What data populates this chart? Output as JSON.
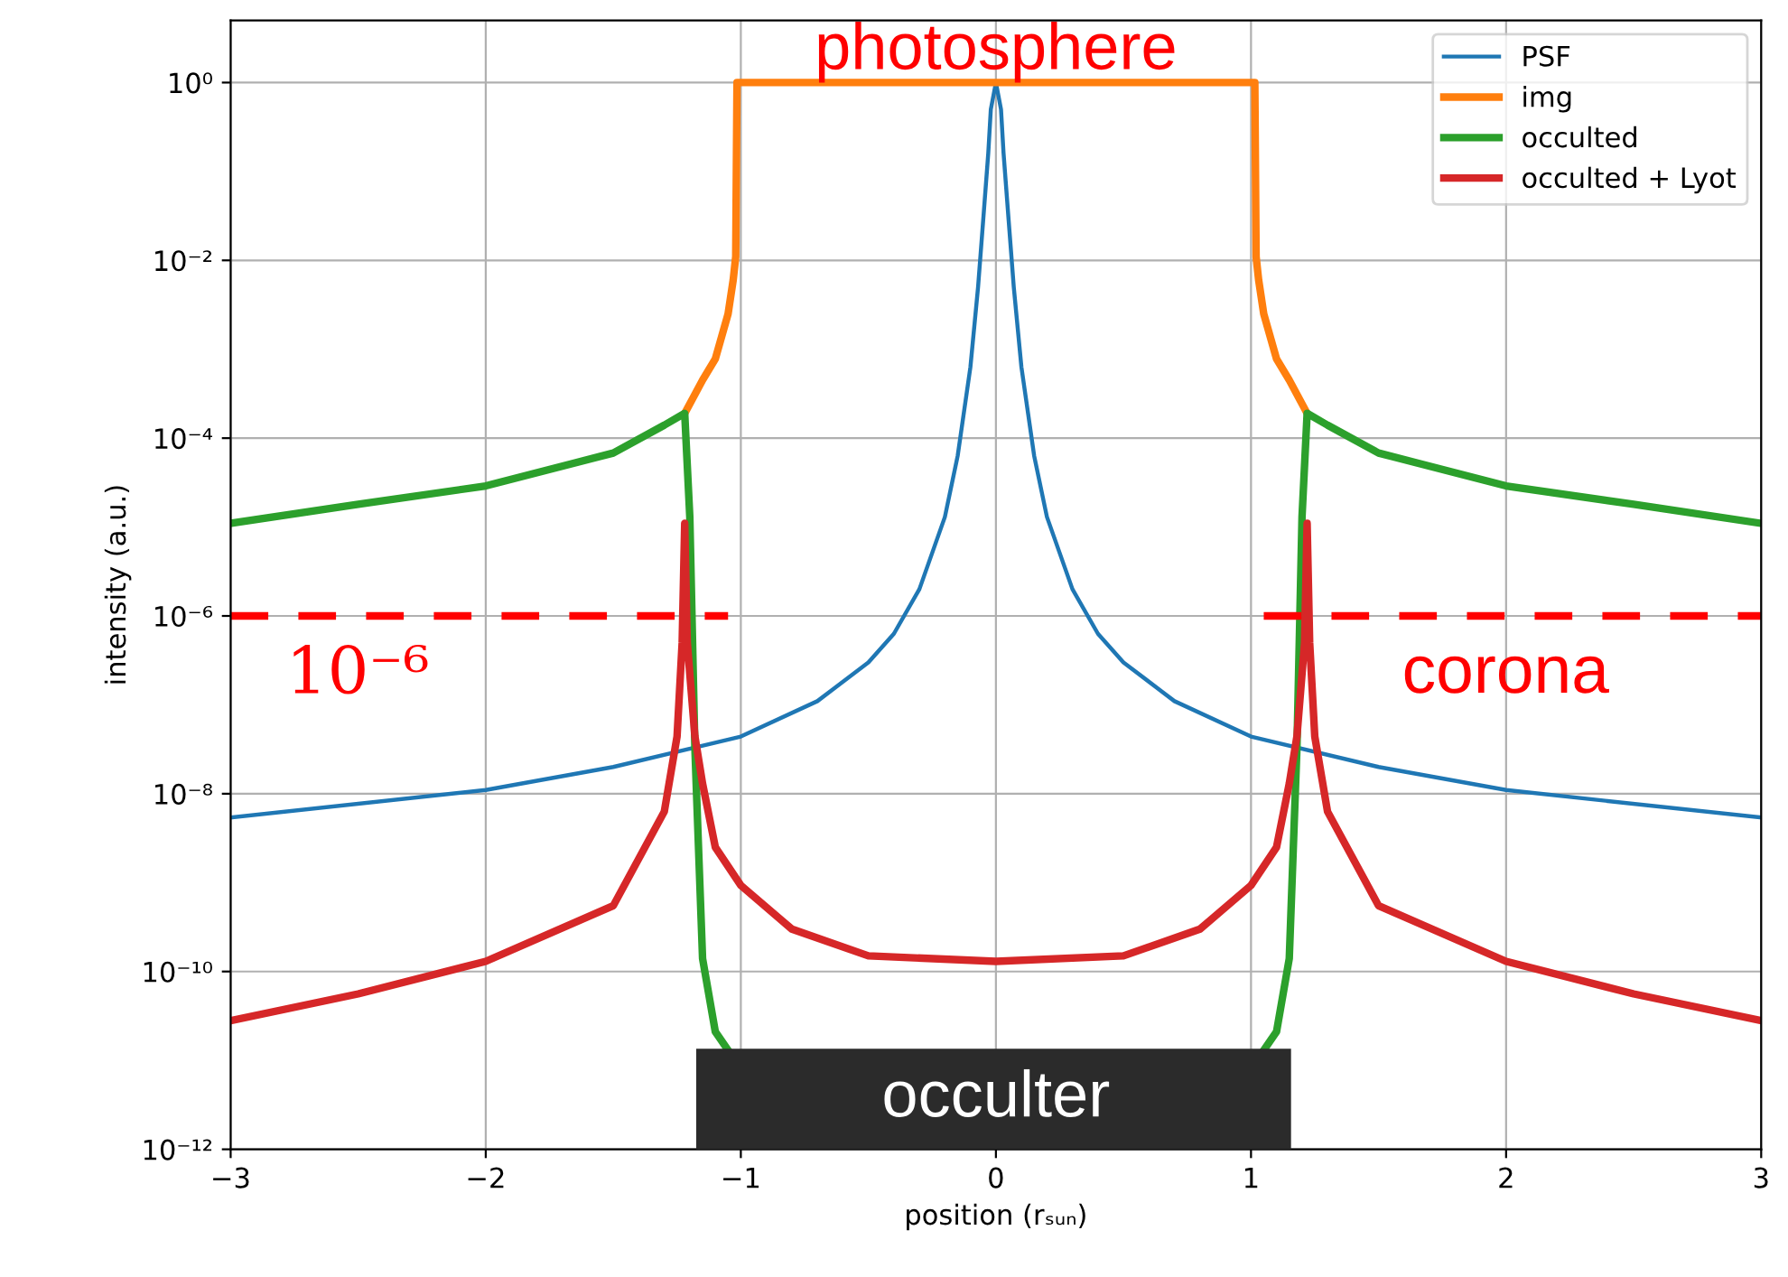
{
  "chart_data": {
    "type": "line",
    "xlabel": "position (rₛᵤₙ)",
    "ylabel": "intensity (a.u.)",
    "log": "y",
    "grid": true,
    "legend": "top right",
    "xlim": [
      -3,
      3
    ],
    "xticks": [
      {
        "value": -3,
        "label": "−3"
      },
      {
        "value": -2,
        "label": "−2"
      },
      {
        "value": -1,
        "label": "−1"
      },
      0,
      1,
      2,
      3
    ],
    "ylim": [
      1e-12,
      5
    ],
    "yticks": [
      {
        "value": 1e-12,
        "label": "10⁻¹²"
      },
      {
        "value": 1e-10,
        "label": "10⁻¹⁰"
      },
      {
        "value": 1e-08,
        "label": "10⁻⁸"
      },
      {
        "value": 1e-06,
        "label": "10⁻⁶"
      },
      {
        "value": 0.0001,
        "label": "10⁻⁴"
      },
      {
        "value": 0.01,
        "label": "10⁻²"
      },
      {
        "value": 1,
        "label": "10⁰"
      }
    ],
    "series": [
      {
        "name": "PSF",
        "color": "#1f77b4",
        "x": [
          -3,
          -2,
          -1.5,
          -1,
          -0.7,
          -0.5,
          -0.4,
          -0.3,
          -0.2,
          -0.15,
          -0.1,
          -0.07,
          -0.05,
          -0.03,
          -0.02,
          0,
          0.02,
          0.03,
          0.05,
          0.07,
          0.1,
          0.15,
          0.2,
          0.3,
          0.4,
          0.5,
          0.7,
          1,
          1.5,
          2,
          3
        ],
        "values": [
          5.4e-09,
          1.1e-08,
          2e-08,
          4.4e-08,
          1.1e-07,
          3e-07,
          6.3e-07,
          2e-06,
          1.3e-05,
          6.3e-05,
          0.00063,
          0.005,
          0.028,
          0.16,
          0.5,
          1,
          0.5,
          0.16,
          0.028,
          0.005,
          0.00063,
          6.3e-05,
          1.3e-05,
          2e-06,
          6.3e-07,
          3e-07,
          1.1e-07,
          4.4e-08,
          2e-08,
          1.1e-08,
          5.4e-09
        ]
      },
      {
        "name": "img",
        "color": "#ff7f0e",
        "x": [
          -1.22,
          -1.15,
          -1.1,
          -1.05,
          -1.03,
          -1.02,
          -1.015,
          1.015,
          1.02,
          1.03,
          1.05,
          1.1,
          1.15,
          1.22
        ],
        "values": [
          0.00019,
          0.00045,
          0.00078,
          0.0025,
          0.006,
          0.011,
          1,
          1,
          0.011,
          0.006,
          0.0025,
          0.00078,
          0.00045,
          0.00019
        ]
      },
      {
        "name": "occulted",
        "color": "#2ca02c",
        "x": [
          -3,
          -2.5,
          -2,
          -1.5,
          -1.3,
          -1.22,
          -1.2,
          -1.18,
          -1.15,
          -1.1,
          -1.05,
          -1,
          1,
          1.05,
          1.1,
          1.15,
          1.18,
          1.2,
          1.22,
          1.3,
          1.5,
          2,
          2.5,
          3
        ],
        "values": [
          1.1e-05,
          1.8e-05,
          2.9e-05,
          6.8e-05,
          0.00014,
          0.00019,
          1.3e-05,
          3.2e-08,
          1.4e-10,
          2.1e-11,
          1.3e-11,
          null,
          null,
          1.3e-11,
          2.1e-11,
          1.4e-10,
          3.2e-08,
          1.3e-05,
          0.00019,
          0.00014,
          6.8e-05,
          2.9e-05,
          1.8e-05,
          1.1e-05
        ]
      },
      {
        "name": "occulted + Lyot",
        "color": "#d62728",
        "x": [
          -3,
          -2.5,
          -2,
          -1.5,
          -1.3,
          -1.25,
          -1.23,
          -1.22,
          -1.21,
          -1.18,
          -1.15,
          -1.1,
          -1,
          -0.8,
          -0.5,
          0,
          0.5,
          0.8,
          1,
          1.1,
          1.15,
          1.18,
          1.21,
          1.22,
          1.23,
          1.25,
          1.3,
          1.5,
          2,
          2.5,
          3
        ],
        "values": [
          2.8e-11,
          5.6e-11,
          1.3e-10,
          5.5e-10,
          6.3e-09,
          4.4e-08,
          5e-07,
          1.1e-05,
          5e-07,
          4.4e-08,
          1.3e-08,
          2.5e-09,
          9.3e-10,
          3e-10,
          1.5e-10,
          1.3e-10,
          1.5e-10,
          3e-10,
          9.3e-10,
          2.5e-09,
          1.3e-08,
          4.4e-08,
          5e-07,
          1.1e-05,
          5e-07,
          4.4e-08,
          6.3e-09,
          5.5e-10,
          1.3e-10,
          5.6e-11,
          2.8e-11
        ]
      },
      {
        "color": "#ff0000",
        "line_style": "dashed",
        "x": [
          -3,
          -1.05
        ],
        "values": [
          1e-06,
          1e-06
        ]
      },
      {
        "color": "#ff0000",
        "line_style": "dashed",
        "x": [
          1.05,
          3
        ],
        "values": [
          1e-06,
          1e-06
        ]
      }
    ],
    "annotations": [
      {
        "text": "photosphere",
        "x": 0,
        "y": 1
      },
      "10⁻⁶",
      "corona",
      "occulter"
    ]
  }
}
